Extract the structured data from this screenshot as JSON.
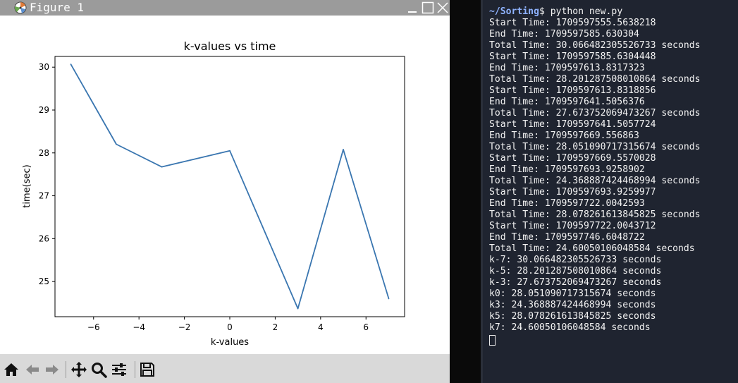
{
  "figure_window": {
    "title": "Figure 1"
  },
  "chart_data": {
    "type": "line",
    "title": "k-values vs time",
    "xlabel": "k-values",
    "ylabel": "time(sec)",
    "x": [
      -7,
      -5,
      -3,
      0,
      3,
      5,
      7
    ],
    "series": [
      {
        "values": [
          30.066482305526733,
          28.201287508010864,
          27.673752069473267,
          28.051090717315674,
          24.368887424468994,
          28.078261613845825,
          24.60050106048584
        ]
      }
    ],
    "xlim": [
      -7.7,
      7.7
    ],
    "ylim": [
      24.18,
      30.25
    ],
    "xticks": [
      -6,
      -4,
      -2,
      0,
      2,
      4,
      6
    ],
    "xtick_labels": [
      "−6",
      "−4",
      "−2",
      "0",
      "2",
      "4",
      "6"
    ],
    "yticks": [
      25,
      26,
      27,
      28,
      29,
      30
    ],
    "ytick_labels": [
      "25",
      "26",
      "27",
      "28",
      "29",
      "30"
    ],
    "grid": false,
    "line_color": "#3a76b0"
  },
  "toolbar": {
    "buttons": [
      "home-icon",
      "back-arrow-icon",
      "forward-arrow-icon",
      "pan-icon",
      "zoom-icon",
      "subplots-icon",
      "save-icon"
    ]
  },
  "terminal": {
    "prompt_path": "~/Sorting",
    "prompt_cmd": "$ python new.py",
    "lines": [
      "Start Time: 1709597555.5638218",
      "End Time: 1709597585.630304",
      "Total Time: 30.066482305526733 seconds",
      "Start Time: 1709597585.6304448",
      "End Time: 1709597613.8317323",
      "Total Time: 28.201287508010864 seconds",
      "Start Time: 1709597613.8318856",
      "End Time: 1709597641.5056376",
      "Total Time: 27.673752069473267 seconds",
      "Start Time: 1709597641.5057724",
      "End Time: 1709597669.556863",
      "Total Time: 28.051090717315674 seconds",
      "Start Time: 1709597669.5570028",
      "End Time: 1709597693.9258902",
      "Total Time: 24.368887424468994 seconds",
      "Start Time: 1709597693.9259977",
      "End Time: 1709597722.0042593",
      "Total Time: 28.078261613845825 seconds",
      "Start Time: 1709597722.0043712",
      "End Time: 1709597746.6048722",
      "Total Time: 24.60050106048584 seconds",
      "k-7: 30.066482305526733 seconds",
      "k-5: 28.201287508010864 seconds",
      "k-3: 27.673752069473267 seconds",
      "k0: 28.051090717315674 seconds",
      "k3: 24.368887424468994 seconds",
      "k5: 28.078261613845825 seconds",
      "k7: 24.60050106048584 seconds"
    ]
  }
}
